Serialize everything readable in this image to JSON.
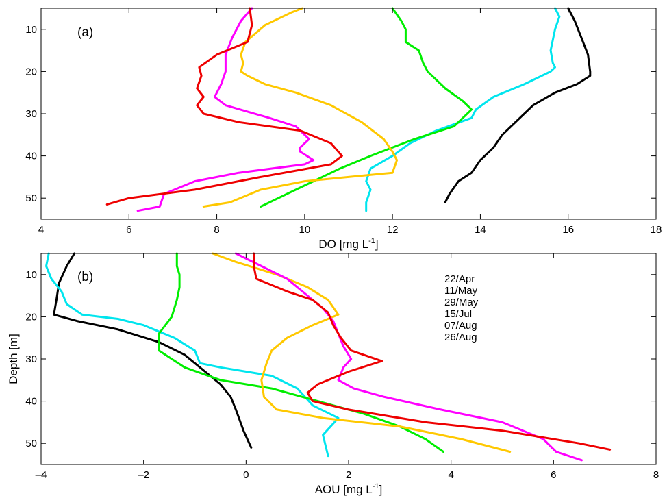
{
  "chart_data": [
    {
      "panel_label": "(a)",
      "type": "line",
      "xlabel": "DO [mg L",
      "xlabel_sup": "-1",
      "xlabel_end": "]",
      "ylabel": "",
      "xlim": [
        4,
        18
      ],
      "ylim": [
        5,
        55
      ],
      "y_reversed": true,
      "grid": false,
      "xticks": [
        4,
        6,
        8,
        10,
        12,
        14,
        16,
        18
      ],
      "yticks": [
        10,
        20,
        30,
        40,
        50
      ],
      "series": [
        {
          "name": "22/Apr",
          "color": "#000000",
          "x": [
            16.0,
            16.15,
            16.3,
            16.45,
            16.5,
            16.5,
            16.2,
            15.7,
            15.2,
            14.8,
            14.5,
            14.3,
            14.0,
            13.8,
            13.5,
            13.3,
            13.2
          ],
          "y": [
            5,
            8,
            12,
            16,
            20,
            21,
            23,
            25,
            28,
            32,
            35,
            38,
            41,
            44,
            46,
            49,
            51
          ]
        },
        {
          "name": "11/May",
          "color": "#00e5ee",
          "x": [
            15.7,
            15.8,
            15.7,
            15.6,
            15.65,
            15.7,
            15.6,
            15.0,
            14.3,
            13.9,
            13.8,
            13.0,
            12.4,
            12.0,
            11.5,
            11.4,
            11.5,
            11.4,
            11.4
          ],
          "y": [
            5,
            7,
            10,
            15,
            18,
            19,
            20,
            23,
            26,
            29,
            31,
            34,
            37,
            40,
            43,
            46,
            48,
            51,
            53
          ]
        },
        {
          "name": "29/May",
          "color": "#00ee00",
          "x": [
            12.0,
            12.2,
            12.3,
            12.3,
            12.6,
            12.7,
            12.8,
            13.2,
            13.6,
            13.8,
            13.6,
            13.4,
            12.5,
            11.5,
            10.8,
            10.2,
            9.6,
            9.0
          ],
          "y": [
            5,
            8,
            10,
            13,
            15,
            18,
            20,
            24,
            27,
            29,
            31,
            33,
            36,
            40,
            43,
            46,
            49,
            52
          ]
        },
        {
          "name": "15/Jul",
          "color": "#ffc800",
          "x": [
            9.95,
            9.7,
            9.1,
            8.65,
            8.55,
            8.6,
            8.55,
            8.7,
            9.1,
            9.8,
            10.6,
            11.3,
            11.8,
            12.0,
            12.1,
            12.0,
            11.0,
            10.0,
            9.0,
            8.3,
            7.7
          ],
          "y": [
            5,
            6,
            9,
            13,
            16,
            18,
            20,
            21,
            23,
            25,
            28,
            32,
            36,
            39,
            41,
            44,
            45,
            46,
            48,
            51,
            52
          ]
        },
        {
          "name": "07/Aug",
          "color": "#ff00ff",
          "x": [
            8.8,
            8.55,
            8.35,
            8.2,
            8.2,
            8.1,
            7.95,
            8.2,
            9.2,
            9.8,
            10.1,
            9.9,
            9.9,
            10.2,
            10.0,
            8.5,
            7.5,
            6.8,
            6.7,
            6.2
          ],
          "y": [
            5,
            8,
            12,
            16,
            20,
            23,
            26,
            28,
            31,
            33,
            36,
            38,
            39,
            41,
            42,
            44,
            46,
            49,
            52,
            53
          ]
        },
        {
          "name": "26/Aug",
          "color": "#ee0000",
          "x": [
            8.75,
            8.8,
            8.7,
            8.0,
            7.6,
            7.65,
            7.55,
            7.7,
            7.55,
            7.7,
            8.5,
            9.9,
            10.6,
            10.85,
            10.6,
            9.0,
            7.5,
            6.0,
            5.5
          ],
          "y": [
            5,
            9,
            13,
            16,
            19,
            21,
            24,
            26,
            28,
            30,
            32,
            34,
            37,
            40,
            42,
            45,
            48,
            50,
            51.5
          ]
        }
      ]
    },
    {
      "panel_label": "(b)",
      "type": "line",
      "xlabel": "AOU [mg L",
      "xlabel_sup": "-1",
      "xlabel_end": "]",
      "ylabel": "Depth [m]",
      "xlim": [
        -4,
        8
      ],
      "ylim": [
        5,
        55
      ],
      "y_reversed": true,
      "grid": false,
      "xticks": [
        -4,
        -2,
        0,
        2,
        4,
        6,
        8
      ],
      "xtick_labels": [
        "–4",
        "–2",
        "0",
        "2",
        "4",
        "6",
        "8"
      ],
      "yticks": [
        10,
        20,
        30,
        40,
        50
      ],
      "legend": {
        "placement": "top-right",
        "entries": [
          "22/Apr",
          "11/May",
          "29/May",
          "15/Jul",
          "07/Aug",
          "26/Aug"
        ]
      },
      "series": [
        {
          "name": "22/Apr",
          "color": "#000000",
          "x": [
            -3.35,
            -3.5,
            -3.65,
            -3.7,
            -3.75,
            -3.3,
            -2.5,
            -1.7,
            -1.2,
            -0.8,
            -0.5,
            -0.3,
            -0.2,
            -0.05,
            0.1
          ],
          "y": [
            5,
            8,
            12,
            16,
            19.5,
            21,
            23,
            26,
            29,
            33,
            36,
            39,
            42,
            47,
            51
          ]
        },
        {
          "name": "11/May",
          "color": "#00e5ee",
          "x": [
            -3.85,
            -3.9,
            -3.8,
            -3.6,
            -3.5,
            -3.2,
            -2.5,
            -2.0,
            -1.4,
            -1.0,
            -0.9,
            -0.5,
            0.5,
            1.0,
            1.3,
            1.8,
            1.5,
            1.6
          ],
          "y": [
            5,
            8,
            11,
            14,
            17,
            19.5,
            20.5,
            22,
            25,
            28,
            31,
            32,
            34,
            37,
            41,
            44,
            48,
            53
          ]
        },
        {
          "name": "29/May",
          "color": "#00ee00",
          "x": [
            -1.35,
            -1.35,
            -1.3,
            -1.3,
            -1.35,
            -1.45,
            -1.7,
            -1.7,
            -1.2,
            -0.5,
            0.5,
            1.4,
            2.3,
            3.0,
            3.5,
            3.85
          ],
          "y": [
            5,
            8,
            10,
            13,
            16,
            20,
            24,
            28,
            32,
            35,
            37,
            40,
            43,
            46,
            49,
            52
          ]
        },
        {
          "name": "15/Jul",
          "color": "#ffc800",
          "x": [
            -0.65,
            -0.2,
            0.6,
            1.2,
            1.6,
            1.8,
            1.3,
            0.8,
            0.5,
            0.4,
            0.3,
            0.35,
            0.6,
            1.5,
            3.0,
            4.2,
            5.15
          ],
          "y": [
            5,
            7,
            10,
            13,
            16,
            19.5,
            22,
            25,
            28,
            31,
            35,
            39,
            42,
            44,
            46,
            49,
            52
          ]
        },
        {
          "name": "07/Aug",
          "color": "#ff00ff",
          "x": [
            -0.2,
            0.3,
            0.8,
            1.2,
            1.5,
            1.7,
            1.8,
            1.9,
            2.05,
            1.9,
            1.8,
            2.1,
            2.7,
            3.8,
            5.0,
            5.8,
            6.05,
            6.55
          ],
          "y": [
            5,
            8,
            11,
            15,
            18,
            21,
            24,
            27,
            30,
            32,
            35,
            37,
            39,
            42,
            45,
            49,
            52,
            54
          ]
        },
        {
          "name": "26/Aug",
          "color": "#ee0000",
          "x": [
            0.15,
            0.15,
            0.2,
            0.8,
            1.3,
            1.6,
            1.7,
            1.85,
            2.05,
            2.65,
            2.0,
            1.4,
            1.2,
            1.3,
            2.0,
            3.5,
            5.0,
            6.5,
            7.1
          ],
          "y": [
            5,
            8,
            11,
            14,
            16,
            19,
            22,
            25,
            28,
            30.5,
            33,
            36,
            38,
            40,
            42,
            45,
            47,
            50,
            51.5
          ]
        }
      ]
    }
  ]
}
